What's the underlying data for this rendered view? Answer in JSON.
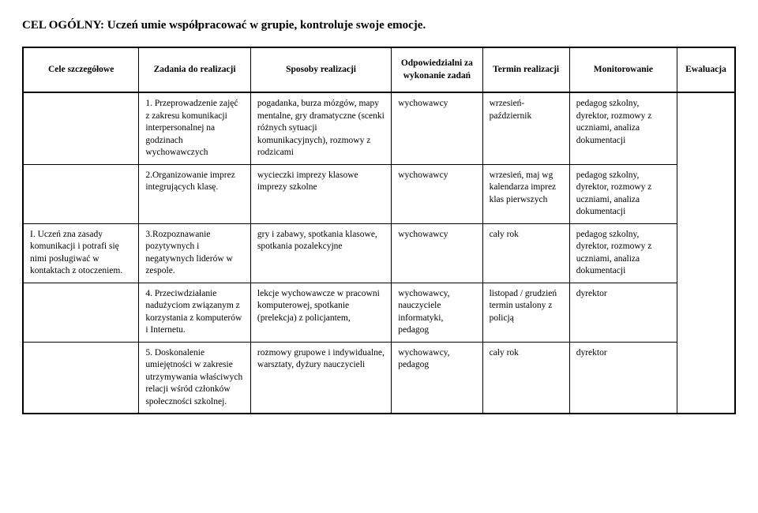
{
  "title": "CEL OGÓLNY: Uczeń umie współpracować w grupie, kontroluje swoje emocje.",
  "columns": [
    "Cele szczegółowe",
    "Zadania do realizacji",
    "Sposoby realizacji",
    "Odpowiedzialni za wykonanie zadań",
    "Termin realizacji",
    "Monitorowanie",
    "Ewaluacja"
  ],
  "goal_label": "I. Uczeń zna zasady komunikacji i potrafi się nimi posługiwać w kontaktach z otoczeniem.",
  "rows": [
    {
      "task": "1. Przeprowadzenie zajęć z zakresu komunikacji interpersonalnej na godzinach wychowawczych",
      "methods": "pogadanka, burza mózgów, mapy mentalne, gry dramatyczne (scenki różnych sytuacji komunikacyjnych), rozmowy z rodzicami",
      "responsible": "wychowawcy",
      "term": "wrzesień-październik",
      "monitoring": "pedagog szkolny, dyrektor, rozmowy z uczniami, analiza dokumentacji",
      "eval": ""
    },
    {
      "task": "2.Organizowanie imprez integrujących klasę.",
      "methods": "wycieczki\nimprezy klasowe imprezy szkolne",
      "responsible": "wychowawcy",
      "term": "wrzesień, maj wg kalendarza imprez klas pierwszych",
      "monitoring": "pedagog szkolny, dyrektor, rozmowy z uczniami, analiza dokumentacji",
      "eval": ""
    },
    {
      "task": "3.Rozpoznawanie pozytywnych i negatywnych liderów w zespole.",
      "methods": "gry i zabawy, spotkania klasowe, spotkania pozalekcyjne",
      "responsible": "wychowawcy",
      "term": "cały rok",
      "monitoring": "pedagog szkolny, dyrektor, rozmowy z uczniami, analiza dokumentacji",
      "eval": ""
    },
    {
      "task": "4. Przeciwdziałanie nadużyciom związanym z korzystania z komputerów i Internetu.",
      "methods": "lekcje wychowawcze w pracowni komputerowej, spotkanie (prelekcja) z policjantem,",
      "responsible": "wychowawcy, nauczyciele informatyki, pedagog",
      "term": "listopad / grudzień\ntermin ustalony z policją",
      "monitoring": "dyrektor",
      "eval": ""
    },
    {
      "task": "5. Doskonalenie umiejętności w zakresie utrzymywania właściwych relacji wśród członków społeczności szkolnej.",
      "methods": "rozmowy grupowe i indywidualne, warsztaty, dyżury nauczycieli",
      "responsible": "wychowawcy, pedagog",
      "term": "cały rok",
      "monitoring": "dyrektor",
      "eval": ""
    }
  ]
}
